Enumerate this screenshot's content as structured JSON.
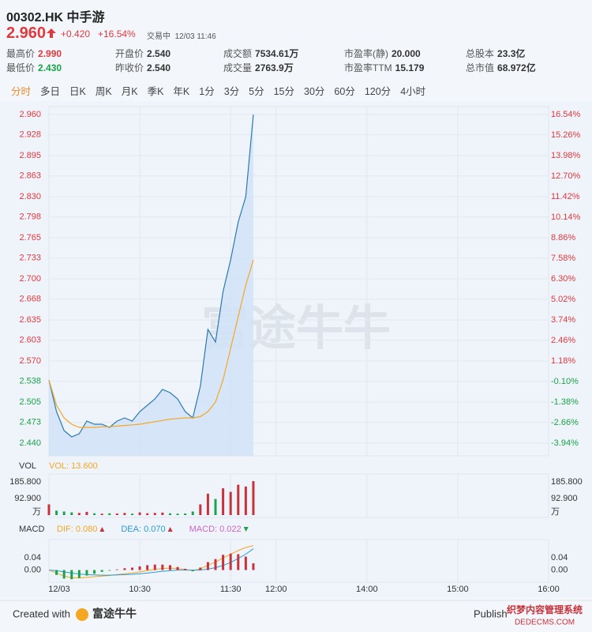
{
  "header": {
    "code": "00302.HK",
    "name": "中手游",
    "price": "2.960",
    "change": "+0.420",
    "change_pct": "+16.54%",
    "status": "交易中",
    "time": "12/03 11:46"
  },
  "stats": [
    {
      "label": "最高价",
      "value": "2.990",
      "tone": "up"
    },
    {
      "label": "开盘价",
      "value": "2.540"
    },
    {
      "label": "成交额",
      "value": "7534.61万"
    },
    {
      "label": "市盈率(静)",
      "value": "20.000"
    },
    {
      "label": "总股本",
      "value": "23.3亿"
    },
    {
      "label": "最低价",
      "value": "2.430",
      "tone": "down"
    },
    {
      "label": "昨收价",
      "value": "2.540"
    },
    {
      "label": "成交量",
      "value": "2763.9万"
    },
    {
      "label": "市盈率TTM",
      "value": "15.179"
    },
    {
      "label": "总市值",
      "value": "68.972亿"
    }
  ],
  "tabs": [
    "分时",
    "多日",
    "日K",
    "周K",
    "月K",
    "季K",
    "年K",
    "1分",
    "3分",
    "5分",
    "15分",
    "30分",
    "60分",
    "120分",
    "4小时"
  ],
  "active_tab": 0,
  "watermark": "富途牛牛",
  "chart_data": [
    {
      "type": "line",
      "prev_close": 2.54,
      "up_color": "#e0393e",
      "down_color": "#1aa34a",
      "x": [
        "09:30",
        "09:35",
        "09:40",
        "09:45",
        "09:50",
        "09:55",
        "10:00",
        "10:05",
        "10:10",
        "10:15",
        "10:20",
        "10:25",
        "10:30",
        "10:35",
        "10:40",
        "10:45",
        "10:50",
        "10:55",
        "11:00",
        "11:05",
        "11:10",
        "11:15",
        "11:20",
        "11:25",
        "11:30",
        "11:35",
        "11:40",
        "11:45"
      ],
      "xlim": [
        "09:30",
        "16:00"
      ],
      "series": [
        {
          "color": "#2a7ab0",
          "fill": "#cfe2f7",
          "values": [
            2.54,
            2.49,
            2.46,
            2.45,
            2.455,
            2.475,
            2.47,
            2.47,
            2.465,
            2.475,
            2.48,
            2.475,
            2.49,
            2.5,
            2.51,
            2.525,
            2.52,
            2.51,
            2.49,
            2.48,
            2.53,
            2.62,
            2.6,
            2.68,
            2.73,
            2.79,
            2.83,
            2.96
          ]
        },
        {
          "color": "#f5a623",
          "values": [
            2.54,
            2.5,
            2.48,
            2.47,
            2.465,
            2.465,
            2.465,
            2.466,
            2.466,
            2.467,
            2.468,
            2.469,
            2.47,
            2.472,
            2.474,
            2.476,
            2.478,
            2.479,
            2.48,
            2.48,
            2.482,
            2.49,
            2.505,
            2.54,
            2.59,
            2.64,
            2.69,
            2.73
          ]
        }
      ],
      "ylim": [
        2.44,
        2.96
      ],
      "yticks": [
        {
          "value": 2.96,
          "label": "2.960"
        },
        2.928,
        2.895,
        2.863,
        {
          "value": 2.83,
          "label": "2.830"
        },
        2.798,
        2.765,
        2.733,
        {
          "value": 2.7,
          "label": "2.700"
        },
        2.668,
        2.635,
        2.603,
        {
          "value": 2.57,
          "label": "2.570"
        },
        2.538,
        2.505,
        2.473,
        {
          "value": 2.44,
          "label": "2.440"
        }
      ],
      "y2lim": [
        -3.94,
        16.54
      ],
      "y2ticks": [
        {
          "value": 16.54,
          "label": "16.54%"
        },
        {
          "value": 15.26,
          "label": "15.26%"
        },
        {
          "value": 13.98,
          "label": "13.98%"
        },
        {
          "value": 12.7,
          "label": "12.70%"
        },
        {
          "value": 11.42,
          "label": "11.42%"
        },
        {
          "value": 10.14,
          "label": "10.14%"
        },
        {
          "value": 8.86,
          "label": "8.86%"
        },
        {
          "value": 7.58,
          "label": "7.58%"
        },
        {
          "value": 6.3,
          "label": "6.30%"
        },
        {
          "value": 5.02,
          "label": "5.02%"
        },
        {
          "value": 3.74,
          "label": "3.74%"
        },
        {
          "value": 2.46,
          "label": "2.46%"
        },
        {
          "value": 1.18,
          "label": "1.18%"
        },
        {
          "value": -0.1,
          "label": "-0.10%"
        },
        {
          "value": -1.38,
          "label": "-1.38%"
        },
        {
          "value": -2.66,
          "label": "-2.66%"
        },
        {
          "value": -3.94,
          "label": "-3.94%"
        }
      ],
      "grid": true
    },
    {
      "type": "bar",
      "title": "VOL",
      "indicator": "VOL: 13.600",
      "indicator_color": "#f5a623",
      "unit": "万",
      "up_color": "#c8323a",
      "down_color": "#1aa34a",
      "x": [
        "09:30",
        "09:35",
        "09:40",
        "09:45",
        "09:50",
        "09:55",
        "10:00",
        "10:05",
        "10:10",
        "10:15",
        "10:20",
        "10:25",
        "10:30",
        "10:35",
        "10:40",
        "10:45",
        "10:50",
        "10:55",
        "11:00",
        "11:05",
        "11:10",
        "11:15",
        "11:20",
        "11:25",
        "11:30",
        "11:35",
        "11:40",
        "11:45"
      ],
      "xlim": [
        "09:30",
        "16:00"
      ],
      "values": [
        60,
        25,
        20,
        15,
        12,
        18,
        10,
        8,
        10,
        9,
        12,
        8,
        15,
        10,
        12,
        14,
        10,
        8,
        9,
        20,
        60,
        120,
        90,
        150,
        130,
        170,
        160,
        190
      ],
      "ylim": [
        0,
        230
      ],
      "yticks": [
        {
          "value": 92.9,
          "label": "92.900"
        },
        {
          "value": 185.8,
          "label": "185.800"
        }
      ]
    },
    {
      "type": "macd",
      "title": "MACD",
      "up_color": "#c8323a",
      "down_color": "#1aa34a",
      "x": [
        "09:30",
        "09:35",
        "09:40",
        "09:45",
        "09:50",
        "09:55",
        "10:00",
        "10:05",
        "10:10",
        "10:15",
        "10:20",
        "10:25",
        "10:30",
        "10:35",
        "10:40",
        "10:45",
        "10:50",
        "10:55",
        "11:00",
        "11:05",
        "11:10",
        "11:15",
        "11:20",
        "11:25",
        "11:30",
        "11:35",
        "11:40",
        "11:45"
      ],
      "xlim": [
        "09:30",
        "16:00"
      ],
      "series": [
        {
          "name": "DIF: 0.080",
          "trend": "up",
          "color": "#f5a623",
          "values": [
            0,
            -0.01,
            -0.02,
            -0.025,
            -0.026,
            -0.024,
            -0.022,
            -0.02,
            -0.018,
            -0.015,
            -0.012,
            -0.01,
            -0.006,
            -0.002,
            0.002,
            0.005,
            0.006,
            0.005,
            0.002,
            -0.002,
            0.004,
            0.016,
            0.026,
            0.04,
            0.052,
            0.064,
            0.074,
            0.08
          ]
        },
        {
          "name": "DEA: 0.070",
          "trend": "up",
          "color": "#2a9bd0",
          "values": [
            0,
            -0.002,
            -0.006,
            -0.01,
            -0.013,
            -0.015,
            -0.016,
            -0.017,
            -0.017,
            -0.016,
            -0.015,
            -0.014,
            -0.012,
            -0.01,
            -0.007,
            -0.004,
            -0.002,
            0,
            0,
            0,
            0,
            0.003,
            0.008,
            0.015,
            0.025,
            0.038,
            0.052,
            0.07
          ]
        },
        {
          "name": "MACD: 0.022",
          "trend": "down",
          "color": "#d063c8",
          "kind": "histogram",
          "values": [
            0,
            -0.016,
            -0.028,
            -0.03,
            -0.026,
            -0.018,
            -0.012,
            -0.006,
            -0.002,
            0.002,
            0.006,
            0.008,
            0.012,
            0.016,
            0.018,
            0.018,
            0.016,
            0.01,
            0.004,
            -0.004,
            0.008,
            0.026,
            0.036,
            0.05,
            0.054,
            0.052,
            0.044,
            0.022
          ]
        }
      ],
      "ylim": [
        -0.04,
        0.1
      ],
      "yticks": [
        {
          "value": 0,
          "label": "0.00"
        },
        {
          "value": 0.04,
          "label": "0.04"
        }
      ],
      "xticks": [
        {
          "value": "09:30",
          "label": "12/03"
        },
        {
          "value": "10:30",
          "label": "10:30"
        },
        {
          "value": "11:30",
          "label": "11:30"
        },
        {
          "value": "12:00",
          "label": "12:00"
        },
        {
          "value": "14:00",
          "label": "14:00"
        },
        {
          "value": "15:00",
          "label": "15:00"
        },
        {
          "value": "16:00",
          "label": "16:00"
        }
      ]
    }
  ],
  "footer": {
    "created_with": "Created with",
    "brand": "富途牛牛",
    "publish": "Publish",
    "site": "织梦内容管理系统",
    "site_url": "DEDECMS.COM"
  }
}
